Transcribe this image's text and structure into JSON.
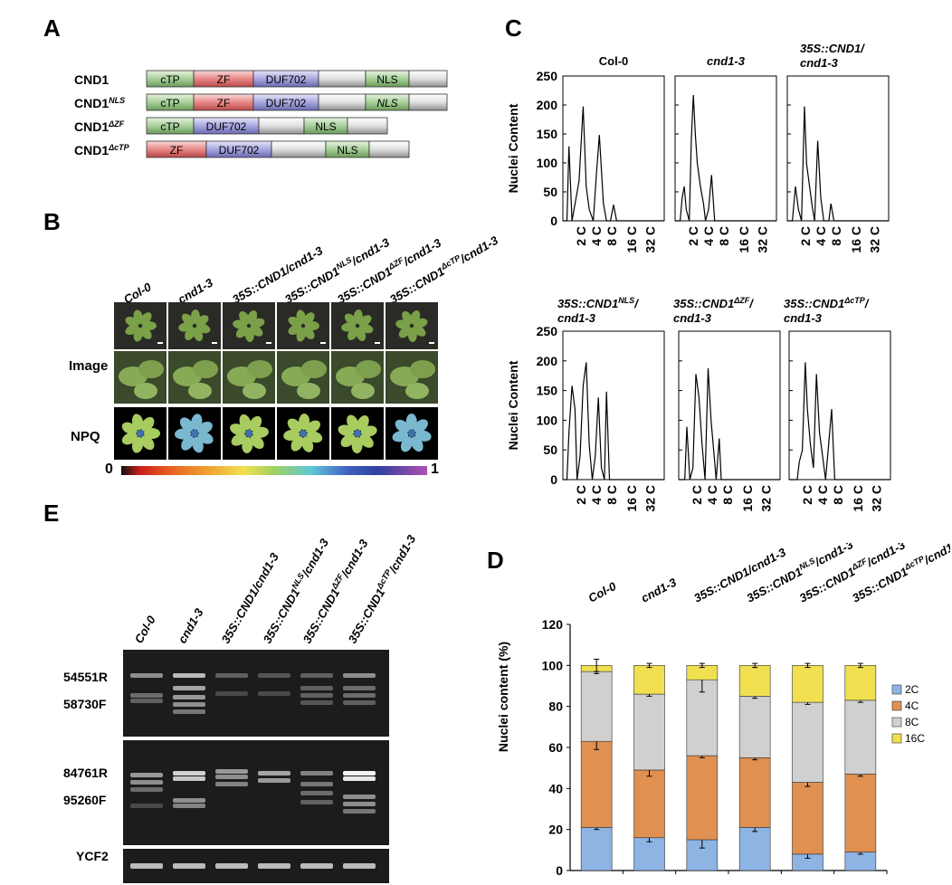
{
  "panel_labels": {
    "a": "A",
    "b": "B",
    "c": "C",
    "d": "D",
    "e": "E"
  },
  "panel_a": {
    "constructs": [
      {
        "name": "CND1",
        "sup": "",
        "segments": [
          "cTP",
          "ZF",
          "DUF702",
          "",
          "NLS",
          ""
        ],
        "italic_nls": false
      },
      {
        "name": "CND1",
        "sup": "NLS",
        "segments": [
          "cTP",
          "ZF",
          "DUF702",
          "",
          "NLS",
          ""
        ],
        "italic_nls": true
      },
      {
        "name": "CND1",
        "sup": "ΔZF",
        "segments": [
          "cTP",
          "DUF702",
          "",
          "NLS",
          ""
        ],
        "italic_nls": false
      },
      {
        "name": "CND1",
        "sup": "ΔcTP",
        "segments": [
          "ZF",
          "DUF702",
          "",
          "NLS",
          ""
        ],
        "italic_nls": false
      }
    ]
  },
  "panel_b": {
    "genotypes": [
      {
        "main": "Col-0",
        "sup": "",
        "tail": ""
      },
      {
        "main": "cnd1-3",
        "sup": "",
        "tail": ""
      },
      {
        "main": "35S::CND1/cnd1-3",
        "sup": "",
        "tail": ""
      },
      {
        "main": "35S::CND1",
        "sup": "NLS",
        "tail": "/cnd1-3"
      },
      {
        "main": "35S::CND1",
        "sup": "ΔZF",
        "tail": "/cnd1-3"
      },
      {
        "main": "35S::CND1",
        "sup": "ΔcTP",
        "tail": "/cnd1-3"
      }
    ],
    "row_labels": [
      "Image",
      "NPQ"
    ],
    "scale_min": "0",
    "scale_max": "1"
  },
  "panel_c": {
    "ylabel": "Nuclei Content",
    "yticks": [
      "250",
      "200",
      "150",
      "100",
      "50",
      "0"
    ],
    "xticks": [
      "2 C",
      "4 C",
      "8 C",
      "16 C",
      "32 C"
    ],
    "plots": [
      {
        "title_lines": [
          "Col-0"
        ],
        "sup": ""
      },
      {
        "title_lines": [
          "cnd1-3"
        ],
        "sup": ""
      },
      {
        "title_lines": [
          "35S::CND1/",
          "cnd1-3"
        ],
        "sup": ""
      },
      {
        "title_lines": [
          "35S::CND1",
          "cnd1-3"
        ],
        "sup": "NLS"
      },
      {
        "title_lines": [
          "35S::CND1",
          "cnd1-3"
        ],
        "sup": "ΔZF"
      },
      {
        "title_lines": [
          "35S::CND1",
          "cnd1-3"
        ],
        "sup": "ΔcTP"
      }
    ]
  },
  "panel_e": {
    "genotypes": [
      {
        "main": "Col-0",
        "sup": "",
        "tail": ""
      },
      {
        "main": "cnd1-3",
        "sup": "",
        "tail": ""
      },
      {
        "main": "35S::CND1/cnd1-3",
        "sup": "",
        "tail": ""
      },
      {
        "main": "35S::CND1",
        "sup": "NLS",
        "tail": "/cnd1-3"
      },
      {
        "main": "35S::CND1",
        "sup": "ΔZF",
        "tail": "/cnd1-3"
      },
      {
        "main": "35S::CND1",
        "sup": "ΔcTP",
        "tail": "/cnd1-3"
      }
    ],
    "gel_labels": [
      "54551R",
      "58730F",
      "84761R",
      "95260F",
      "YCF2"
    ]
  },
  "chart_data": {
    "type": "bar",
    "stacked": true,
    "categories": [
      "Col-0",
      "cnd1-3",
      "35S::CND1/cnd1-3",
      "35S::CND1NLS/cnd1-3",
      "35S::CND1ΔZF/cnd1-3",
      "35S::CND1ΔcTP/cnd1"
    ],
    "category_labels": [
      {
        "main": "Col-0",
        "sup": "",
        "tail": ""
      },
      {
        "main": "cnd1-3",
        "sup": "",
        "tail": ""
      },
      {
        "main": "35S::CND1/cnd1-3",
        "sup": "",
        "tail": ""
      },
      {
        "main": "35S::CND1",
        "sup": "NLS",
        "tail": "/cnd1-3"
      },
      {
        "main": "35S::CND1",
        "sup": "ΔZF",
        "tail": "/cnd1-3"
      },
      {
        "main": "35S::CND1",
        "sup": "ΔcTP",
        "tail": "/cnd1"
      }
    ],
    "series": [
      {
        "name": "2C",
        "color": "#8eb4e3",
        "values": [
          21,
          16,
          15,
          21,
          8,
          9
        ],
        "errors": [
          1,
          2,
          4,
          2,
          2,
          1
        ]
      },
      {
        "name": "4C",
        "color": "#e09050",
        "values": [
          42,
          33,
          41,
          34,
          35,
          38
        ],
        "errors": [
          4,
          3,
          1,
          1,
          2,
          1
        ]
      },
      {
        "name": "8C",
        "color": "#d0d0d0",
        "values": [
          34,
          37,
          37,
          30,
          39,
          36
        ],
        "errors": [
          1,
          1,
          6,
          1,
          1,
          1
        ]
      },
      {
        "name": "16C",
        "color": "#f0e050",
        "values": [
          3,
          14,
          7,
          15,
          18,
          17
        ],
        "errors": [
          3,
          1,
          1,
          1,
          1,
          1
        ]
      }
    ],
    "ylabel": "Nuclei content (%)",
    "ylim": [
      0,
      120
    ],
    "yticks": [
      0,
      20,
      40,
      60,
      80,
      100,
      120
    ],
    "legend": "right"
  }
}
